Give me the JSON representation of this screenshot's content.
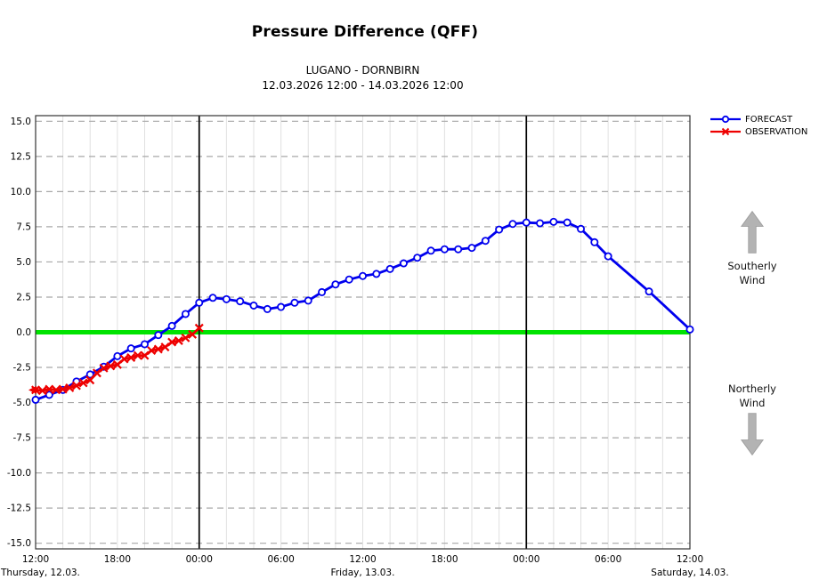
{
  "header": {
    "title": "Pressure Difference (QFF)",
    "station_pair": "LUGANO - DORNBIRN",
    "period": "12.03.2026 12:00 - 14.03.2026 12:00"
  },
  "legend": {
    "items": [
      {
        "label": "FORECAST",
        "color": "#0000ee",
        "marker": "circle"
      },
      {
        "label": "OBSERVATION",
        "color": "#ee0000",
        "marker": "x"
      }
    ]
  },
  "wind_annotations": {
    "southerly_label": "Southerly Wind",
    "northerly_label": "Northerly Wind",
    "arrow_color": "#b3b3b3"
  },
  "chart_data": {
    "type": "line",
    "title": "Pressure Difference (QFF)",
    "subtitle": "LUGANO - DORNBIRN",
    "period": "12.03.2026 12:00 - 14.03.2026 12:00",
    "x_axis": {
      "unit": "hours since 12.03.2026 12:00",
      "min": 0,
      "max": 48,
      "minor_step_hours": 2,
      "major_ticks": [
        {
          "t": 0,
          "label": "12:00"
        },
        {
          "t": 6,
          "label": "18:00"
        },
        {
          "t": 12,
          "label": "00:00"
        },
        {
          "t": 18,
          "label": "06:00"
        },
        {
          "t": 24,
          "label": "12:00"
        },
        {
          "t": 30,
          "label": "18:00"
        },
        {
          "t": 36,
          "label": "00:00"
        },
        {
          "t": 42,
          "label": "06:00"
        },
        {
          "t": 48,
          "label": "12:00"
        }
      ],
      "day_labels": [
        {
          "t": 0,
          "label": "Thursday, 12.03.",
          "anchor": "start"
        },
        {
          "t": 24,
          "label": "Friday, 13.03.",
          "anchor": "middle"
        },
        {
          "t": 48,
          "label": "Saturday, 14.03.",
          "anchor": "middle"
        }
      ],
      "midnight_lines_t": [
        12,
        36
      ]
    },
    "y_axis": {
      "min": -15.4,
      "max": 15.4,
      "tick_min": -15,
      "tick_max": 15,
      "tick_step": 2.5,
      "label_decimals": 1
    },
    "zero_line": {
      "value": 0,
      "color": "#00e300"
    },
    "grid": {
      "h_color": "#a8a8a8",
      "h_dash": "7 5",
      "v_color": "#e0e0e0",
      "frame_color": "#333333",
      "midnight_color": "#000000"
    },
    "series": [
      {
        "name": "FORECAST",
        "color": "#0000ee",
        "marker": "circle",
        "points": [
          [
            0,
            -4.8
          ],
          [
            1,
            -4.45
          ],
          [
            2,
            -4.1
          ],
          [
            3,
            -3.5
          ],
          [
            4,
            -3.0
          ],
          [
            5,
            -2.45
          ],
          [
            6,
            -1.7
          ],
          [
            7,
            -1.15
          ],
          [
            8,
            -0.85
          ],
          [
            9,
            -0.2
          ],
          [
            10,
            0.45
          ],
          [
            11,
            1.3
          ],
          [
            12,
            2.1
          ],
          [
            13,
            2.45
          ],
          [
            14,
            2.35
          ],
          [
            15,
            2.2
          ],
          [
            16,
            1.9
          ],
          [
            17,
            1.65
          ],
          [
            18,
            1.8
          ],
          [
            19,
            2.1
          ],
          [
            20,
            2.25
          ],
          [
            21,
            2.85
          ],
          [
            22,
            3.4
          ],
          [
            23,
            3.75
          ],
          [
            24,
            4.0
          ],
          [
            25,
            4.15
          ],
          [
            26,
            4.5
          ],
          [
            27,
            4.9
          ],
          [
            28,
            5.3
          ],
          [
            29,
            5.8
          ],
          [
            30,
            5.9
          ],
          [
            31,
            5.9
          ],
          [
            32,
            6.0
          ],
          [
            33,
            6.5
          ],
          [
            34,
            7.3
          ],
          [
            35,
            7.7
          ],
          [
            36,
            7.8
          ],
          [
            37,
            7.75
          ],
          [
            38,
            7.85
          ],
          [
            39,
            7.8
          ],
          [
            40,
            7.35
          ],
          [
            41,
            6.4
          ],
          [
            42,
            5.4
          ],
          [
            45,
            2.9
          ],
          [
            48,
            0.2
          ]
        ]
      },
      {
        "name": "OBSERVATION",
        "color": "#ee0000",
        "marker": "x",
        "starts_with_left_arrow": true,
        "points": [
          [
            0,
            -4.1
          ],
          [
            0.5,
            -4.15
          ],
          [
            1,
            -4.05
          ],
          [
            1.5,
            -4.1
          ],
          [
            2,
            -4.05
          ],
          [
            2.5,
            -3.95
          ],
          [
            3,
            -3.8
          ],
          [
            3.5,
            -3.6
          ],
          [
            4,
            -3.4
          ],
          [
            4.5,
            -2.9
          ],
          [
            5,
            -2.55
          ],
          [
            5.5,
            -2.4
          ],
          [
            6,
            -2.3
          ],
          [
            6.5,
            -1.9
          ],
          [
            7,
            -1.8
          ],
          [
            7.5,
            -1.65
          ],
          [
            8,
            -1.65
          ],
          [
            8.5,
            -1.3
          ],
          [
            9,
            -1.2
          ],
          [
            9.5,
            -1.05
          ],
          [
            10,
            -0.7
          ],
          [
            10.5,
            -0.6
          ],
          [
            11,
            -0.4
          ],
          [
            11.5,
            -0.15
          ],
          [
            12,
            0.3
          ]
        ]
      }
    ]
  }
}
